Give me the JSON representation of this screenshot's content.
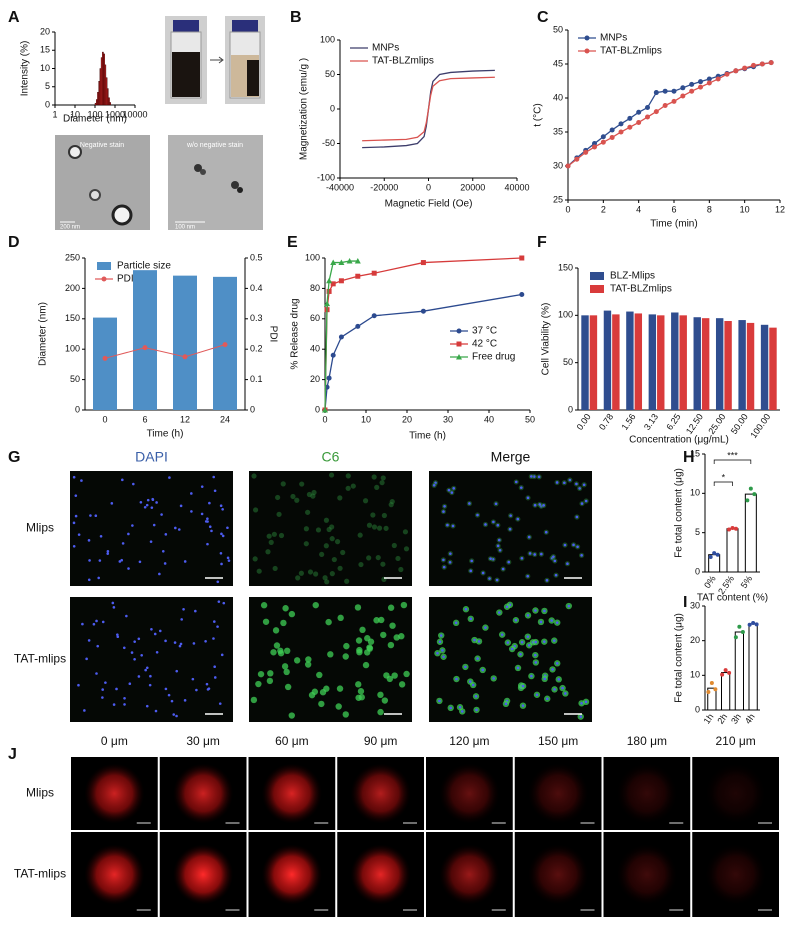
{
  "figure": {
    "panels": [
      "A",
      "B",
      "C",
      "D",
      "E",
      "F",
      "G",
      "H",
      "I",
      "J"
    ],
    "a_labels": [
      "Negative stain",
      "w/o negative stain"
    ],
    "a_scalebars": [
      "200 nm",
      "100 nm"
    ],
    "g_columns": [
      "DAPI",
      "C6",
      "Merge"
    ],
    "g_rows": [
      "Mlips",
      "TAT-mlips"
    ],
    "j_columns": [
      "0 μm",
      "30 μm",
      "60 μm",
      "90 μm",
      "120 μm",
      "150 μm",
      "180 μm",
      "210 μm"
    ],
    "j_rows": [
      "Mlips",
      "TAT-mlips"
    ]
  },
  "chart_data": [
    {
      "type": "histogram",
      "xlabel": "Diameter (nm)",
      "ylabel": "Intensity (%)",
      "xlog": true,
      "xlim": [
        1,
        10000
      ],
      "xticks": [
        1,
        10,
        100,
        1000,
        10000
      ],
      "ylim": [
        0,
        20
      ],
      "yticks": [
        0,
        5,
        10,
        15,
        20
      ],
      "color": "#b01c1c",
      "bins": [
        100,
        115,
        132,
        152,
        175,
        201,
        231,
        266,
        306,
        352,
        405,
        466,
        536,
        616
      ],
      "values": [
        0.5,
        1.5,
        3.5,
        6.5,
        10,
        13,
        14.5,
        14,
        11,
        7.5,
        4.5,
        2,
        0.7
      ]
    },
    {
      "type": "line",
      "xlabel": "Magnetic Field (Oe)",
      "ylabel": "Magnetization (emu/g )",
      "xlim": [
        -40000,
        40000
      ],
      "xticks": [
        -40000,
        -20000,
        0,
        20000,
        40000
      ],
      "ylim": [
        -100,
        100
      ],
      "yticks": [
        -100,
        -50,
        0,
        50,
        100
      ],
      "legend": "upper-left",
      "x": [
        -30000,
        -20000,
        -10000,
        -5000,
        -2000,
        -1000,
        0,
        1000,
        2000,
        5000,
        10000,
        20000,
        30000
      ],
      "series": [
        {
          "name": "MNPs",
          "color": "#3d3d6b",
          "values": [
            -56,
            -55,
            -53,
            -50,
            -40,
            -25,
            0,
            25,
            40,
            50,
            53,
            55,
            56
          ]
        },
        {
          "name": "TAT-BLZmlips",
          "color": "#d9534f",
          "values": [
            -46,
            -45,
            -44,
            -41,
            -33,
            -20,
            0,
            20,
            33,
            41,
            44,
            45,
            46
          ]
        }
      ]
    },
    {
      "type": "line",
      "xlabel": "Time (min)",
      "ylabel": "t (°C)",
      "xlim": [
        0,
        12
      ],
      "xticks": [
        0,
        2,
        4,
        6,
        8,
        10,
        12
      ],
      "ylim": [
        25,
        50
      ],
      "yticks": [
        25,
        30,
        35,
        40,
        45,
        50
      ],
      "legend": "upper-left",
      "x": [
        0,
        0.5,
        1,
        1.5,
        2,
        2.5,
        3,
        3.5,
        4,
        4.5,
        5,
        5.5,
        6,
        6.5,
        7,
        7.5,
        8,
        8.5,
        9,
        9.5,
        10,
        10.5,
        11,
        11.5
      ],
      "series": [
        {
          "name": "MNPs",
          "color": "#2f4d8f",
          "marker": "circle",
          "values": [
            30,
            31.2,
            32.3,
            33.3,
            34.3,
            35.3,
            36.2,
            37,
            37.9,
            38.6,
            40.8,
            41,
            41,
            41.5,
            42,
            42.4,
            42.8,
            43.2,
            43.6,
            44,
            44.3,
            44.6,
            45,
            45.2
          ]
        },
        {
          "name": "TAT-BLZmlips",
          "color": "#d9534f",
          "marker": "circle",
          "values": [
            30,
            31,
            32,
            32.8,
            33.5,
            34.2,
            35,
            35.7,
            36.4,
            37.2,
            38,
            38.9,
            39.5,
            40.3,
            41,
            41.6,
            42.2,
            42.8,
            43.5,
            44,
            44.4,
            44.8,
            45,
            45.2
          ]
        }
      ]
    },
    {
      "type": "bar",
      "xlabel": "Time (h)",
      "ylabel": "Diameter (nm)",
      "y2label": "PDI",
      "categories": [
        "0",
        "6",
        "12",
        "24"
      ],
      "ylim": [
        0,
        250
      ],
      "yticks": [
        0,
        50,
        100,
        150,
        200,
        250
      ],
      "y2lim": [
        0,
        0.5
      ],
      "y2ticks": [
        0,
        0.1,
        0.2,
        0.3,
        0.4,
        0.5
      ],
      "legend": "upper-left",
      "series": [
        {
          "name": "Particle size",
          "color": "#4f8fc6",
          "values": [
            152,
            230,
            221,
            219
          ]
        },
        {
          "name": "PDI",
          "color": "#e05a5a",
          "style": "line",
          "marker": "circle",
          "axis": "y2",
          "values": [
            0.17,
            0.205,
            0.175,
            0.215
          ]
        }
      ]
    },
    {
      "type": "line",
      "xlabel": "Time (h)",
      "ylabel": "% Release drug",
      "xlim": [
        0,
        50
      ],
      "xticks": [
        0,
        10,
        20,
        30,
        40,
        50
      ],
      "ylim": [
        0,
        100
      ],
      "yticks": [
        0,
        20,
        40,
        60,
        80,
        100
      ],
      "legend": "lower-right",
      "series": [
        {
          "name": "37 °C",
          "color": "#2c4a8f",
          "marker": "circle",
          "x": [
            0,
            0.5,
            1,
            2,
            4,
            8,
            12,
            24,
            48
          ],
          "values": [
            0,
            15,
            21,
            36,
            48,
            55,
            62,
            65,
            76
          ]
        },
        {
          "name": "42 °C",
          "color": "#d63b3b",
          "marker": "square",
          "x": [
            0,
            0.5,
            1,
            2,
            4,
            8,
            12,
            24,
            48
          ],
          "values": [
            0,
            66,
            78,
            83,
            85,
            88,
            90,
            97,
            100
          ]
        },
        {
          "name": "Free drug",
          "color": "#3aa84a",
          "marker": "triangle",
          "x": [
            0,
            0.5,
            1,
            2,
            4,
            6,
            8
          ],
          "values": [
            0,
            70,
            85,
            97,
            97,
            98,
            98
          ]
        }
      ]
    },
    {
      "type": "bar",
      "xlabel": "Concentration (μg/mL)",
      "ylabel": "Cell Viability (%)",
      "categories": [
        "0.00",
        "0.78",
        "1.56",
        "3.13",
        "6.25",
        "12.50",
        "25.00",
        "50.00",
        "100.00"
      ],
      "ylim": [
        0,
        150
      ],
      "yticks": [
        0,
        50,
        100,
        150
      ],
      "legend": "upper-left",
      "series": [
        {
          "name": "BLZ-Mlips",
          "color": "#2f4d8f",
          "values": [
            100,
            105,
            104,
            101,
            103,
            98,
            97,
            95,
            90
          ]
        },
        {
          "name": "TAT-BLZmlips",
          "color": "#d93b3b",
          "values": [
            100,
            101,
            102,
            100,
            100,
            97,
            94,
            92,
            87
          ]
        }
      ]
    },
    {
      "type": "bar",
      "xlabel": "TAT content (%)",
      "ylabel": "Fe total content (μg)",
      "categories": [
        "0%",
        "2.5%",
        "5%"
      ],
      "values": [
        2.2,
        5.5,
        9.9
      ],
      "color": "#ffffff",
      "edgecolor": "#000000",
      "points": [
        [
          1.9,
          2.4,
          2.2
        ],
        [
          5.4,
          5.6,
          5.5
        ],
        [
          9.1,
          10.6,
          9.9
        ]
      ],
      "point_colors": [
        "#2f4d9f",
        "#d93b3b",
        "#2e9a4a"
      ],
      "ylim": [
        0,
        15
      ],
      "yticks": [
        0,
        5,
        10,
        15
      ],
      "annotations": [
        "*",
        "***"
      ]
    },
    {
      "type": "bar",
      "ylabel": "Fe total content (μg)",
      "categories": [
        "1h",
        "2h",
        "3h",
        "4h"
      ],
      "values": [
        6.3,
        10.8,
        22.5,
        24.8
      ],
      "color": "#ffffff",
      "edgecolor": "#000000",
      "points": [
        [
          5.2,
          7.8,
          6.0
        ],
        [
          10.2,
          11.5,
          10.7
        ],
        [
          21,
          24,
          22.5
        ],
        [
          24.6,
          25.1,
          24.7
        ]
      ],
      "point_colors": [
        "#e08a30",
        "#d93b3b",
        "#2e9a4a",
        "#2f4d9f"
      ],
      "ylim": [
        0,
        30
      ],
      "yticks": [
        0,
        10,
        20,
        30
      ]
    }
  ]
}
